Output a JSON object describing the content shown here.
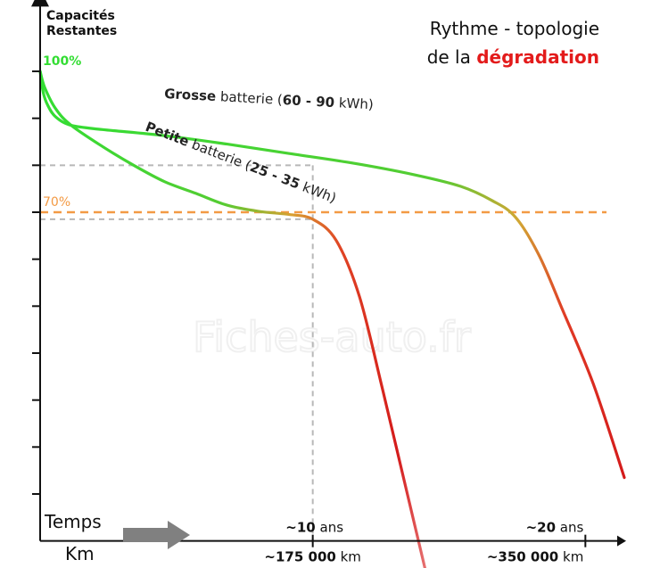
{
  "title": {
    "line1_bold": "Rythme - topologie",
    "line2_prefix": "de la ",
    "line2_highlight": "dégradation"
  },
  "y_axis": {
    "label_line1": "Capacités",
    "label_line2": "Restantes"
  },
  "watermark": "Fiches-auto.fr",
  "colors": {
    "good": "#33dd33",
    "mid": "#c8b030",
    "bad": "#e01b1b",
    "threshold": "#f39a44",
    "reference": "#b8b8b8",
    "axis": "#111111"
  },
  "chart_data": {
    "type": "line",
    "title": "Rythme - topologie de la dégradation",
    "ylabel": "Capacités Restantes",
    "xlabel_time": "Temps",
    "xlabel_distance": "Km",
    "ylim": [
      0,
      110
    ],
    "xlim": [
      0,
      375000
    ],
    "y_annotations": [
      {
        "label": "100%",
        "value": 100,
        "color": "#33dd33"
      },
      {
        "label": "70%",
        "value": 70,
        "color": "#f39a44"
      }
    ],
    "threshold": {
      "value": 70,
      "style": "dashed"
    },
    "reference_lines": [
      {
        "axis": "y",
        "value": 80,
        "style": "dashed"
      },
      {
        "axis": "y",
        "value": 68.5,
        "style": "dashed"
      },
      {
        "axis": "x",
        "value": 175000,
        "style": "dashed"
      }
    ],
    "x_ticks": [
      {
        "value": 175000,
        "time_bold": "~10",
        "time_unit": " ans",
        "km_bold": "~175 000",
        "km_unit": " km"
      },
      {
        "value": 350000,
        "time_bold": "~20",
        "time_unit": " ans",
        "km_bold": "~350 000",
        "km_unit": " km"
      }
    ],
    "series": [
      {
        "name": "Grosse batterie (60 - 90 kWh)",
        "label_bold": "Grosse",
        "label_mid": " batterie (",
        "label_bold2": "60 - 90",
        "label_end": " kWh)",
        "x": [
          0,
          2000,
          5000,
          10000,
          20000,
          40000,
          80000,
          120000,
          160000,
          200000,
          240000,
          270000,
          290000,
          305000,
          320000,
          335000,
          355000,
          375000
        ],
        "values": [
          100,
          95.5,
          92.7,
          90.3,
          88.5,
          87.6,
          86.3,
          84.5,
          82.5,
          80.5,
          78,
          75.5,
          72.5,
          69,
          61,
          49.5,
          33.5,
          13.5
        ]
      },
      {
        "name": "Petite batterie (25 - 35 kWh)",
        "label_bold": "Petite",
        "label_mid": " batterie (",
        "label_bold2": "25 - 35",
        "label_end": " kWh)",
        "x": [
          0,
          3000,
          10000,
          20000,
          40000,
          60000,
          80000,
          100000,
          120000,
          140000,
          160000,
          175000,
          190000,
          205000,
          220000,
          235000,
          250000
        ],
        "values": [
          100,
          96.5,
          92,
          88.5,
          84,
          80,
          76.5,
          74,
          71.5,
          70.2,
          69.5,
          68.5,
          64,
          52,
          32,
          11,
          -10
        ]
      }
    ]
  }
}
